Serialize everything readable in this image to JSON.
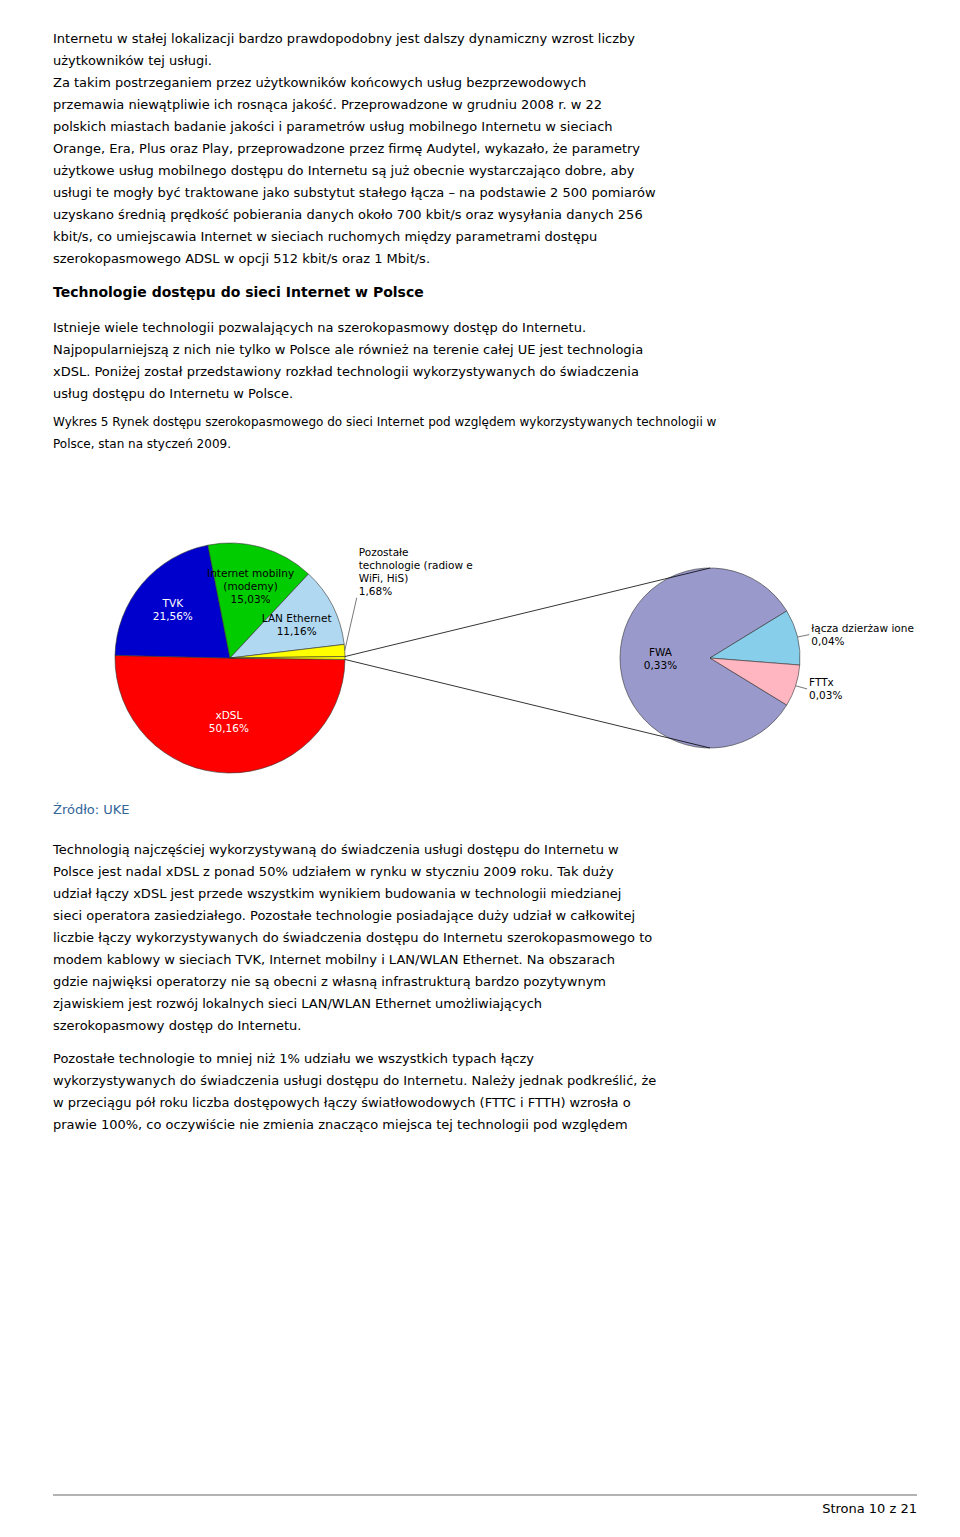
{
  "page": {
    "page_text_top": [
      "Internetu w stałej lokalizacji bardzo prawdopodobny jest dalszy dynamiczny wzrost liczby",
      "użytkowników tej usługi.",
      "Za takim postrzeganiem przez użytkowników końcowych usług bezprzewodowych",
      "przemawia niewątpliwie ich rosnąca jakość. Przeprowadzone w grudniu 2008 r. w 22",
      "polskich miastach badanie jakości i parametrów usług mobilnego Internetu w sieciach",
      "Orange, Era, Plus oraz Play, przeprowadzone przez firmę Audytel, wykazało, że parametry",
      "użytkowe usług mobilnego dostępu do Internetu są już obecnie wystarczająco dobre, aby",
      "usługi te mogły być traktowane jako substytut stałego łącza – na podstawie 2 500 pomiarów",
      "uzyskano średnią prędkość pobierania danych około 700 kbit/s oraz wysyłania danych 256",
      "kbit/s, co umiejscawia Internet w sieciach ruchomych między parametrami dostępu",
      "szerokopasmowego ADSL w opcji 512 kbit/s oraz 1 Mbit/s."
    ],
    "section_title": "Technologie dostępu do sieci Internet w Polsce",
    "para1": [
      "Istnieje wiele technologii pozwalających na szerokopasmowy dostęp do Internetu.",
      "Najpopularniejszą z nich nie tylko w Polsce ale również na terenie całej UE jest technologia",
      "xDSL. Poniżej został przedstawiony rozkład technologii wykorzystywanych do świadczenia",
      "usług dostępu do Internetu w Polsce."
    ],
    "caption": [
      "Wykres 5 Rynek dostępu szerokopasmowego do sieci Internet pod względem wykorzystywanych technologii w",
      "Polsce, stan na styczeń 2009."
    ],
    "source_text": "Źródło: UKE",
    "para2": [
      "Technologią najczęściej wykorzystywaną do świadczenia usługi dostępu do Internetu w",
      "Polsce jest nadal xDSL z ponad 50% udziałem w rynku w styczniu 2009 roku. Tak duży",
      "udział łączy xDSL jest przede wszystkim wynikiem budowania w technologii miedzianej",
      "sieci operatora zasiedziałego. Pozostałe technologie posiadające duży udział w całkowitej",
      "liczbie łączy wykorzystywanych do świadczenia dostępu do Internetu szerokopasmowego to",
      "modem kablowy w sieciach TVK, Internet mobilny i LAN/WLAN Ethernet. Na obszarach",
      "gdzie najwięksi operatorzy nie są obecni z własną infrastrukturą bardzo pozytywnym",
      "zjawiskiem jest rozwój lokalnych sieci LAN/WLAN Ethernet umożliwiających",
      "szerokopasmowy dostęp do Internetu."
    ],
    "para3": [
      "Pozostałe technologie to mniej niż 1% udziału we wszystkich typach łączy",
      "wykorzystywanych do świadczenia usługi dostępu do Internetu. Należy jednak podkreślić, że",
      "w przeciągu pół roku liczba dostępowych łączy światłowodowych (FTTC i FTTH) wzrosła o",
      "prawie 100%, co oczywiście nie zmienia znacząco miejsca tej technologii pod względem"
    ],
    "footer": "Strona 10 z 21"
  },
  "chart_data": [
    {
      "type": "pie",
      "categories": [
        "xDSL",
        "TVK",
        "Internet mobilny\n(modemy)",
        "LAN Ethernet",
        "Pozostałe\ntechnologie (radiow e\nWiFi, HiS)",
        null
      ],
      "values": [
        50.16,
        21.56,
        15.03,
        11.16,
        1.68,
        0.41
      ],
      "value_labels": [
        "50,16%",
        "21,56%",
        "15,03%",
        "11,16%",
        "1,68%",
        null
      ],
      "colors": [
        "#ff0000",
        "#0000cc",
        "#00cc00",
        "#b0d8f0",
        "#ffff00",
        "#ffff00"
      ]
    },
    {
      "type": "pie",
      "categories": [
        "FWA",
        "łącza dzierżaw ione",
        "FTTx"
      ],
      "values": [
        0.33,
        0.04,
        0.03
      ],
      "value_labels": [
        "0,33%",
        "0,04%",
        "0,03%"
      ],
      "colors": [
        "#9999cc",
        "#87ceeb",
        "#ffb6c1"
      ]
    }
  ]
}
